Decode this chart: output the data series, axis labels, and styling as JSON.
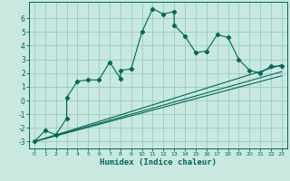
{
  "title": "",
  "xlabel": "Humidex (Indice chaleur)",
  "bg_color": "#c8e8e0",
  "grid_color": "#98ccc4",
  "line_color": "#006858",
  "xlim": [
    -0.5,
    23.5
  ],
  "ylim": [
    -3.5,
    7.2
  ],
  "yticks": [
    -3,
    -2,
    -1,
    0,
    1,
    2,
    3,
    4,
    5,
    6
  ],
  "xticks": [
    0,
    1,
    2,
    3,
    4,
    5,
    6,
    7,
    8,
    9,
    10,
    11,
    12,
    13,
    14,
    15,
    16,
    17,
    18,
    19,
    20,
    21,
    22,
    23
  ],
  "scatter_x": [
    0,
    1,
    2,
    3,
    3,
    4,
    5,
    6,
    7,
    8,
    8,
    9,
    10,
    11,
    12,
    13,
    13,
    14,
    15,
    16,
    17,
    18,
    19,
    20,
    21,
    22,
    23
  ],
  "scatter_y": [
    -3.0,
    -2.2,
    -2.5,
    -1.3,
    0.2,
    1.4,
    1.5,
    1.5,
    2.8,
    1.6,
    2.2,
    2.3,
    5.0,
    6.7,
    6.3,
    6.5,
    5.5,
    4.7,
    3.5,
    3.6,
    4.8,
    4.6,
    3.0,
    2.2,
    2.0,
    2.5,
    2.5
  ],
  "line1_x": [
    0,
    23
  ],
  "line1_y": [
    -3.0,
    2.6
  ],
  "line2_x": [
    0,
    23
  ],
  "line2_y": [
    -3.0,
    1.8
  ],
  "line3_x": [
    0,
    23
  ],
  "line3_y": [
    -3.0,
    2.1
  ]
}
